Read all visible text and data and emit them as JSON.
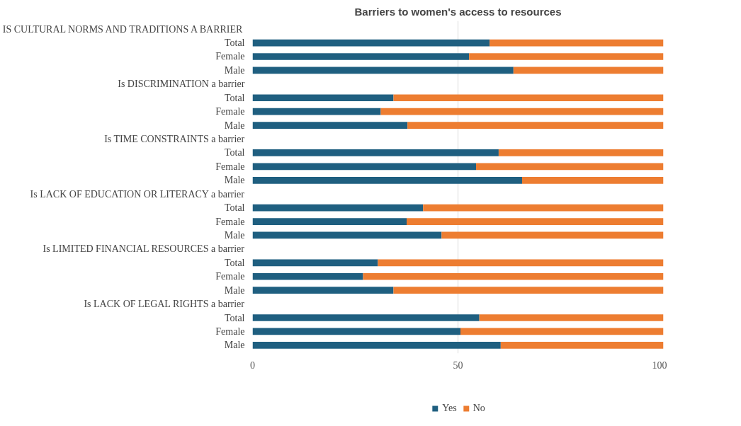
{
  "chart_data": {
    "type": "bar",
    "orientation": "horizontal",
    "stacked": true,
    "title": "Barriers to women's access to resources",
    "categories": [
      "IS CULTURAL NORMS AND TRADITIONS A BARRIER",
      "Total",
      "Female",
      "Male",
      "Is DISCRIMINATION a barrier",
      "Total",
      "Female",
      "Male",
      "Is TIME CONSTRAINTS a barrier",
      "Total",
      "Female",
      "Male",
      "Is LACK OF EDUCATION OR LITERACY a barrier",
      "Total",
      "Female",
      "Male",
      "Is LIMITED FINANCIAL RESOURCES a barrier",
      "Total",
      "Female",
      "Male",
      "Is LACK OF LEGAL RIGHTS a barrier",
      "Total",
      "Female",
      "Male"
    ],
    "series": [
      {
        "name": "Yes",
        "color": "#1f5f80",
        "values": [
          null,
          57.7,
          52.7,
          63.5,
          null,
          34.3,
          31.2,
          37.7,
          null,
          59.9,
          54.4,
          65.6,
          null,
          41.5,
          37.5,
          46.0,
          null,
          30.5,
          26.9,
          34.3,
          null,
          55.2,
          50.6,
          60.4
        ]
      },
      {
        "name": "No",
        "color": "#ed7d31",
        "values": [
          null,
          42.3,
          47.3,
          36.5,
          null,
          65.7,
          68.8,
          62.3,
          null,
          40.1,
          45.6,
          34.4,
          null,
          58.5,
          62.5,
          54.0,
          null,
          69.5,
          73.1,
          65.7,
          null,
          44.8,
          49.4,
          39.6
        ]
      }
    ],
    "xlim": [
      0,
      100
    ],
    "xticks": [
      0,
      50,
      100
    ],
    "grid": "x",
    "legend": "bottom"
  }
}
